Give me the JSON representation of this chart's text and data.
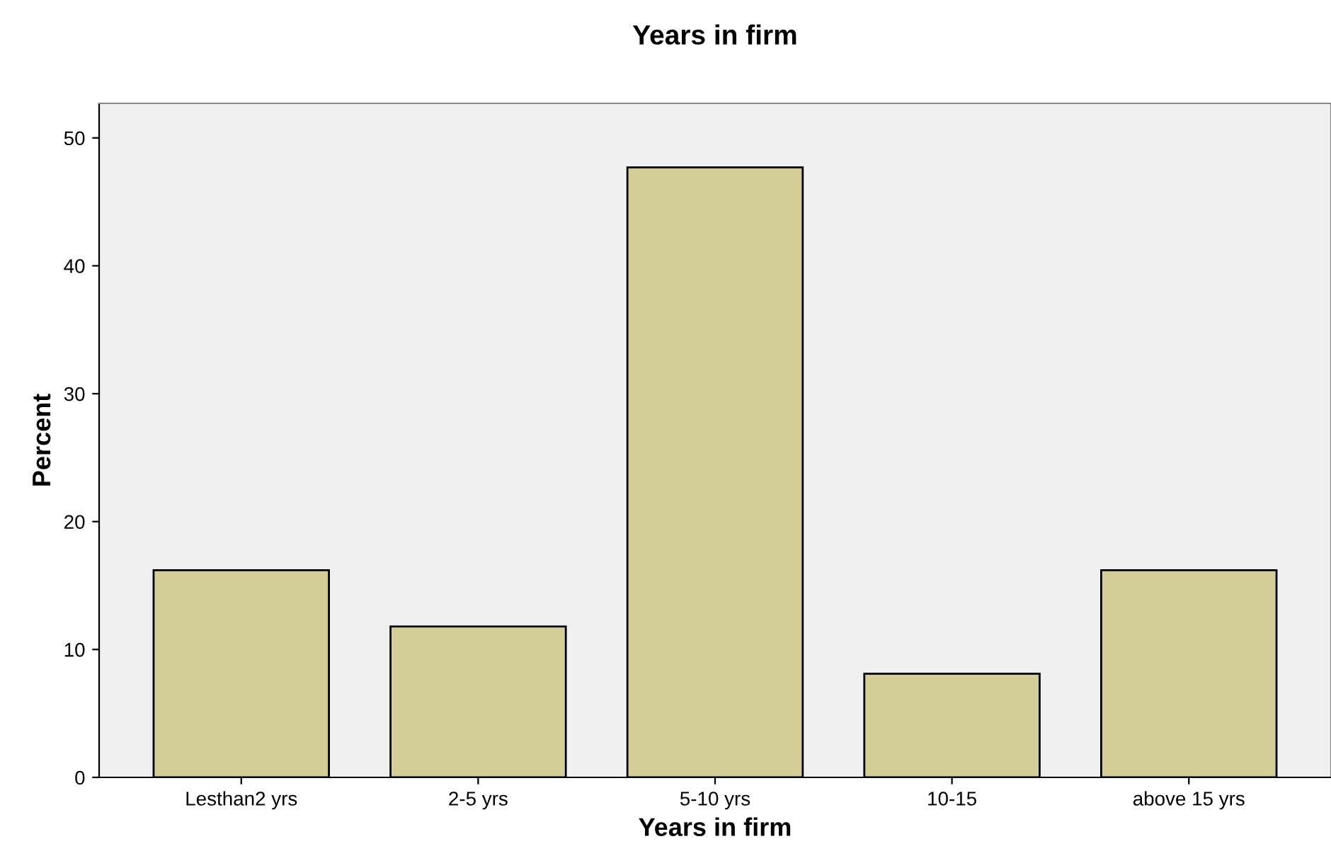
{
  "chart_data": {
    "type": "bar",
    "title": "Years in firm",
    "xlabel": "Years in firm",
    "ylabel": "Percent",
    "categories": [
      "Lesthan2 yrs",
      "2-5 yrs",
      "5-10 yrs",
      "10-15",
      "above 15 yrs"
    ],
    "values": [
      16.2,
      11.8,
      47.7,
      8.1,
      16.2
    ],
    "color": "#d3ce97",
    "ylim": [
      0,
      52.7
    ],
    "yticks": [
      0,
      10,
      20,
      30,
      40,
      50
    ],
    "grid": false
  }
}
